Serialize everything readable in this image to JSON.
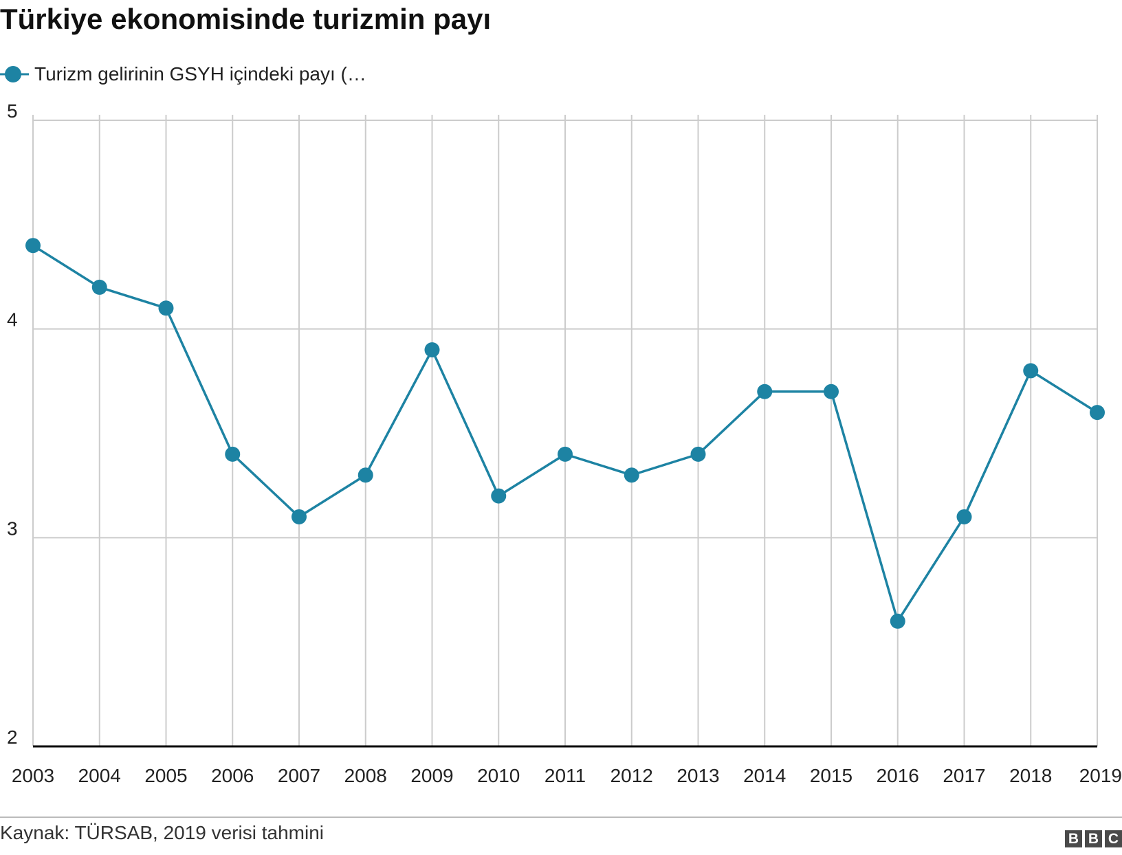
{
  "title": "Türkiye ekonomisinde turizmin payı",
  "source": "Kaynak: TÜRSAB, 2019 verisi tahmini",
  "logo_text": "BBC",
  "colors": {
    "series": "#1d83a3",
    "grid": "#cccccc",
    "axis": "#000000",
    "text": "#222222"
  },
  "chart_data": {
    "type": "line",
    "title": "Türkiye ekonomisinde turizmin payı",
    "xlabel": "",
    "ylabel": "",
    "x": [
      "2003",
      "2004",
      "2005",
      "2006",
      "2007",
      "2008",
      "2009",
      "2010",
      "2011",
      "2012",
      "2013",
      "2014",
      "2015",
      "2016",
      "2017",
      "2018",
      "2019"
    ],
    "series": [
      {
        "name": "Turizm gelirinin GSYH içindeki payı (…",
        "values": [
          4.4,
          4.2,
          4.1,
          3.4,
          3.1,
          3.3,
          3.9,
          3.2,
          3.4,
          3.3,
          3.4,
          3.7,
          3.7,
          2.6,
          3.1,
          3.8,
          3.6
        ]
      }
    ],
    "ylim": [
      2,
      5
    ],
    "yticks": [
      "2",
      "3",
      "4",
      "5"
    ],
    "grid": true,
    "legend": "top-left",
    "markers": true
  }
}
